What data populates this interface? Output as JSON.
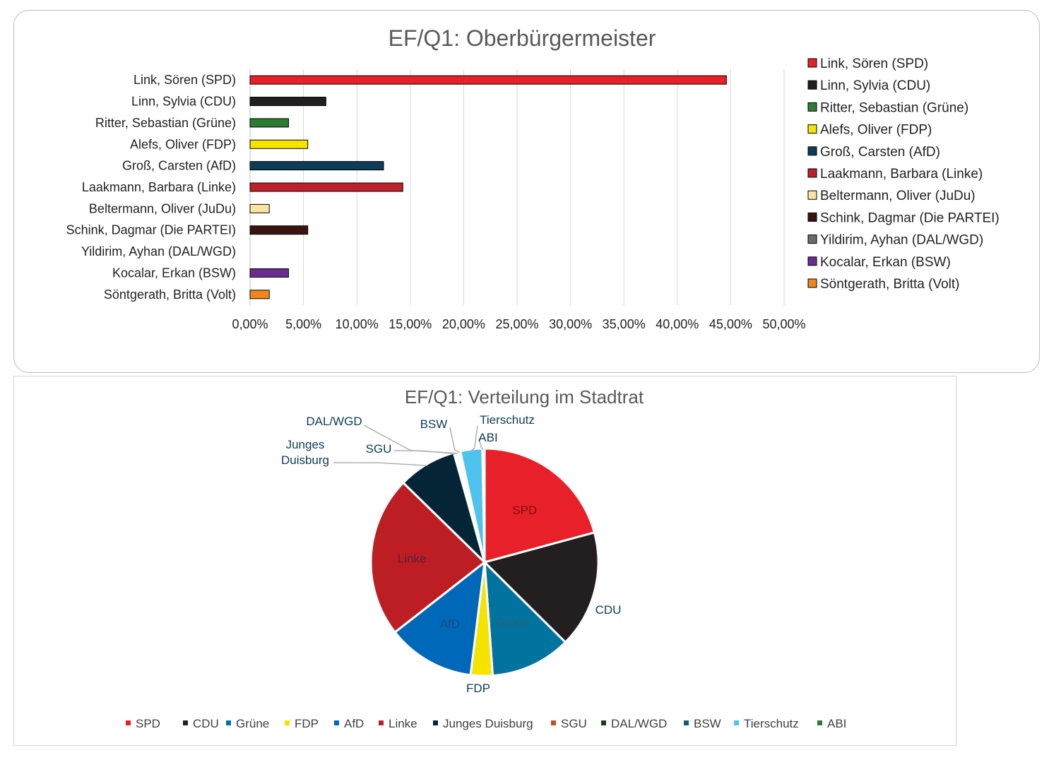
{
  "colors": {
    "SPD": "#e8202a",
    "CDU": "#231f20",
    "Gruene": "#2e7d32",
    "FDP": "#f4e400",
    "AfD_bar": "#0b3d57",
    "Linke": "#c0202a",
    "JuDu": "#fde3a0",
    "PARTEI": "#3b1410",
    "DAL": "#6b6b6b",
    "BSW": "#6a2c91",
    "Volt": "#f0861d"
  },
  "chart_data": [
    {
      "type": "bar",
      "orientation": "horizontal",
      "title": "EF/Q1: Oberbürgermeister",
      "categories": [
        "Link, Sören (SPD)",
        "Linn, Sylvia (CDU)",
        "Ritter, Sebastian (Grüne)",
        "Alefs, Oliver (FDP)",
        "Groß, Carsten (AfD)",
        "Laakmann, Barbara (Linke)",
        "Beltermann, Oliver (JuDu)",
        "Schink, Dagmar (Die PARTEI)",
        "Yildirim, Ayhan (DAL/WGD)",
        "Kocalar, Erkan (BSW)",
        "Söntgerath, Britta (Volt)"
      ],
      "values": [
        44.6,
        7.1,
        3.6,
        5.4,
        12.5,
        14.3,
        1.8,
        5.4,
        0.0,
        3.6,
        1.8
      ],
      "bar_colors": [
        "#e8202a",
        "#231f20",
        "#2e7d32",
        "#f4e400",
        "#0b3d57",
        "#c0202a",
        "#fde3a0",
        "#3b1410",
        "#6b6b6b",
        "#6a2c91",
        "#f0861d"
      ],
      "xlim": [
        0,
        50
      ],
      "xticks": [
        "0,00%",
        "5,00%",
        "10,00%",
        "15,00%",
        "20,00%",
        "25,00%",
        "30,00%",
        "35,00%",
        "40,00%",
        "45,00%",
        "50,00%"
      ],
      "grid": true,
      "legend": "right"
    },
    {
      "type": "pie",
      "title": "EF/Q1: Verteilung im Stadtrat",
      "slices": [
        {
          "label": "SPD",
          "value": 20.0,
          "color": "#e8202a",
          "label_color": "#7a1010"
        },
        {
          "label": "CDU",
          "value": 16.0,
          "color": "#231f20",
          "label_color": "#0b3d57"
        },
        {
          "label": "Grüne",
          "value": 11.0,
          "color": "#00739e",
          "label_color": "#2f6070"
        },
        {
          "label": "FDP",
          "value": 3.0,
          "color": "#f4e400",
          "label_color": "#0b3d57"
        },
        {
          "label": "AfD",
          "value": 12.0,
          "color": "#0068b8",
          "label_color": "#174c82"
        },
        {
          "label": "Linke",
          "value": 22.0,
          "color": "#bd1e24",
          "label_color": "#5a1f3a"
        },
        {
          "label": "Junges Duisburg",
          "value": 8.0,
          "color": "#042536",
          "label_color": "#0b3d57"
        },
        {
          "label": "SGU",
          "value": 0.3,
          "color": "#c0502a",
          "label_color": "#0b3d57"
        },
        {
          "label": "DAL/WGD",
          "value": 0.3,
          "color": "#1d3b1d",
          "label_color": "#0b3d57"
        },
        {
          "label": "BSW",
          "value": 0.3,
          "color": "#1a5876",
          "label_color": "#0b3d57"
        },
        {
          "label": "Tierschutz",
          "value": 3.0,
          "color": "#4ec3ee",
          "label_color": "#0b3d57"
        },
        {
          "label": "ABI",
          "value": 0.3,
          "color": "#2e7d32",
          "label_color": "#0b3d57"
        }
      ],
      "legend": "bottom"
    }
  ]
}
